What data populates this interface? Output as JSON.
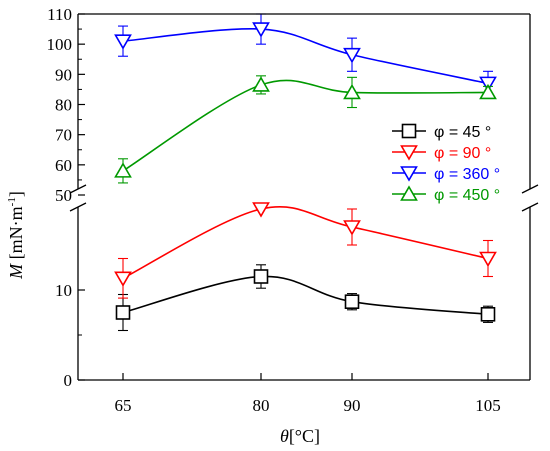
{
  "chart_data": {
    "type": "line",
    "x_categories": [
      "65",
      "80",
      "90",
      "105"
    ],
    "x_values": [
      65,
      80,
      90,
      105
    ],
    "xlabel_symbol": "θ",
    "xlabel_unit": "[°C]",
    "ylabel_symbol": "M",
    "ylabel_unit": "[mN·m",
    "ylabel_exp": "-1",
    "ylabel_close": "]",
    "y_axis_broken": true,
    "y_lower_range": [
      0,
      20
    ],
    "y_upper_range": [
      50,
      110
    ],
    "y_ticks_lower": [
      "0",
      "10"
    ],
    "y_ticks_upper": [
      "50",
      "60",
      "70",
      "80",
      "90",
      "100",
      "110"
    ],
    "smooth_lines": true,
    "grid": false,
    "legend_position": "right-middle",
    "series": [
      {
        "name": "φ = 45 °",
        "color": "#000000",
        "marker": "square",
        "values": [
          7.5,
          11.5,
          8.7,
          7.3
        ],
        "errors": [
          2.0,
          1.3,
          0.9,
          0.9
        ]
      },
      {
        "name": "φ = 90 °",
        "color": "#ff0000",
        "marker": "triangle-down",
        "values": [
          11.3,
          19.0,
          17.0,
          13.5
        ],
        "errors": [
          2.2,
          0,
          2.0,
          2.0
        ]
      },
      {
        "name": "φ = 360 °",
        "color": "#0000ff",
        "marker": "triangle-down",
        "values": [
          101,
          105,
          96.5,
          87
        ],
        "errors": [
          5,
          5,
          5.5,
          4
        ]
      },
      {
        "name": "φ = 450 °",
        "color": "#009900",
        "marker": "triangle-up",
        "values": [
          58,
          86.5,
          84,
          84
        ],
        "errors": [
          4,
          3,
          5,
          2
        ]
      }
    ]
  }
}
